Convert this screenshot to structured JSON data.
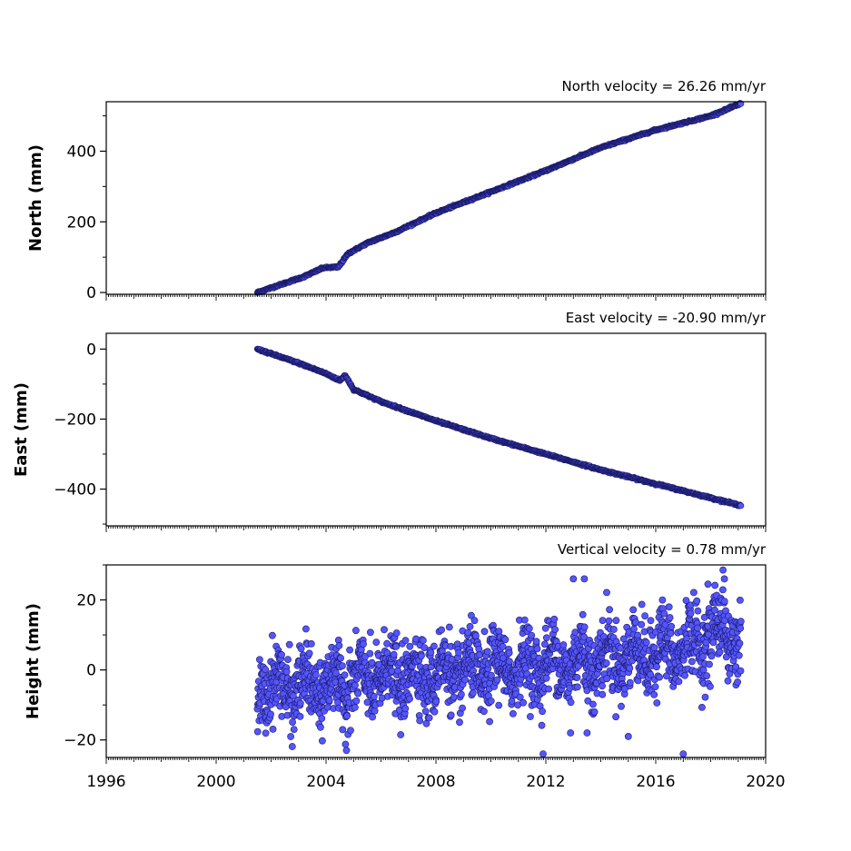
{
  "chart_data": [
    {
      "type": "scatter",
      "id": "north",
      "title": "North velocity = 26.26 mm/yr",
      "xlabel": "",
      "ylabel": "North (mm)",
      "xlim": [
        1996,
        2020
      ],
      "ylim": [
        -5,
        540
      ],
      "yticks": [
        0,
        200,
        400
      ],
      "ytick_labels": [
        "0",
        "200",
        "400"
      ],
      "x_range": [
        2001.5,
        2019.1
      ],
      "trend_points": [
        [
          2001.5,
          0
        ],
        [
          2003.2,
          45
        ],
        [
          2003.9,
          70
        ],
        [
          2004.45,
          72
        ],
        [
          2004.8,
          110
        ],
        [
          2005.5,
          140
        ],
        [
          2006.5,
          170
        ],
        [
          2008.0,
          225
        ],
        [
          2010.0,
          285
        ],
        [
          2012.0,
          345
        ],
        [
          2014.0,
          410
        ],
        [
          2016.0,
          460
        ],
        [
          2018.0,
          500
        ],
        [
          2019.1,
          535
        ]
      ],
      "marker_color": "#5555ff",
      "edge_color": "#1a1a66",
      "grid": false
    },
    {
      "type": "scatter",
      "id": "east",
      "title": "East velocity = -20.90 mm/yr",
      "xlabel": "",
      "ylabel": "East (mm)",
      "xlim": [
        1996,
        2020
      ],
      "ylim": [
        -505,
        45
      ],
      "yticks": [
        0,
        -200,
        -400
      ],
      "ytick_labels": [
        "0",
        "−200",
        "−400"
      ],
      "x_range": [
        2001.5,
        2019.1
      ],
      "trend_points": [
        [
          2001.5,
          0
        ],
        [
          2003.0,
          -40
        ],
        [
          2004.0,
          -70
        ],
        [
          2004.5,
          -90
        ],
        [
          2004.7,
          -75
        ],
        [
          2005.0,
          -115
        ],
        [
          2006.0,
          -150
        ],
        [
          2008.0,
          -205
        ],
        [
          2010.0,
          -255
        ],
        [
          2012.0,
          -300
        ],
        [
          2014.0,
          -345
        ],
        [
          2016.0,
          -385
        ],
        [
          2018.0,
          -425
        ],
        [
          2019.1,
          -447
        ]
      ],
      "marker_color": "#5555ff",
      "edge_color": "#1a1a66",
      "grid": false
    },
    {
      "type": "scatter",
      "id": "height",
      "title": "Vertical velocity = 0.78 mm/yr",
      "xlabel": "",
      "ylabel": "Height (mm)",
      "xlim": [
        1996,
        2020
      ],
      "ylim": [
        -25,
        30
      ],
      "yticks": [
        20,
        0,
        -20
      ],
      "ytick_labels": [
        "20",
        "0",
        "−20"
      ],
      "x_range": [
        2001.5,
        2019.1
      ],
      "trend_points": [
        [
          2001.5,
          -5
        ],
        [
          2004.0,
          -5
        ],
        [
          2006.0,
          -2
        ],
        [
          2010.0,
          0
        ],
        [
          2014.0,
          3
        ],
        [
          2017.0,
          6
        ],
        [
          2018.5,
          12
        ],
        [
          2019.1,
          8
        ]
      ],
      "scatter_spread": 5,
      "outliers": [
        [
          2013.0,
          26
        ],
        [
          2013.4,
          26
        ],
        [
          2011.9,
          -24
        ],
        [
          2017.0,
          -24
        ],
        [
          2012.9,
          -18
        ],
        [
          2013.5,
          -18
        ],
        [
          2015.0,
          -19
        ],
        [
          2017.9,
          24.5
        ],
        [
          2018.5,
          26
        ]
      ],
      "marker_color": "#5555ff",
      "edge_color": "#1a1a66",
      "grid": false
    }
  ],
  "x_axis": {
    "ticks": [
      1996,
      2000,
      2004,
      2008,
      2012,
      2016,
      2020
    ],
    "tick_labels": [
      "1996",
      "2000",
      "2004",
      "2008",
      "2012",
      "2016",
      "2020"
    ]
  }
}
